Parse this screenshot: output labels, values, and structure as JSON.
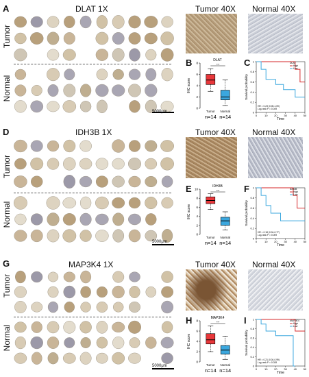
{
  "panels": {
    "A": {
      "letter": "A",
      "title": "DLAT 1X",
      "tumor": "Tumor",
      "normal": "Normal",
      "scale": "5000μm"
    },
    "tumor40_1": "Tumor 40X",
    "normal40_1": "Normal 40X",
    "B": {
      "letter": "B",
      "gene": "DLAT",
      "ylabel": "IHC score",
      "sig": "***",
      "xt": "Tumor",
      "xn": "Normal",
      "nt": "n=14",
      "nn": "n=14"
    },
    "C": {
      "letter": "C",
      "ylabel": "Survival probability",
      "xlabel": "Time",
      "hr": "HR = 0.23 (0.05-1.09)",
      "lr": "Log-rank P = 0.049",
      "legend_title": "DLAT",
      "high": "High",
      "low": "Low"
    },
    "D": {
      "letter": "D",
      "title": "IDH3B 1X",
      "tumor": "Tumor",
      "normal": "Normal",
      "scale": "5000μm"
    },
    "tumor40_2": "Tumor 40X",
    "normal40_2": "Normal 40X",
    "E": {
      "letter": "E",
      "gene": "IDH3B",
      "ylabel": "IHC score",
      "sig": "***",
      "xt": "Tumor",
      "xn": "Normal",
      "nt": "n=14",
      "nn": "n=14"
    },
    "F": {
      "letter": "F",
      "ylabel": "Survival probability",
      "xlabel": "Time",
      "hr": "HR = 0.18 (0.04-0.77)",
      "lr": "Log-rank P = 0.009",
      "legend_title": "IDH3B",
      "high": "High",
      "low": "Low"
    },
    "G": {
      "letter": "G",
      "title": "MAP3K4 1X",
      "tumor": "Tumor",
      "normal": "Normal",
      "scale": "5000μm"
    },
    "tumor40_3": "Tumor 40X",
    "normal40_3": "Normal 40X",
    "H": {
      "letter": "H",
      "gene": "MAP3K4",
      "ylabel": "IHC score",
      "sig": "***",
      "xt": "Tumor",
      "xn": "Normal",
      "nt": "n=14",
      "nn": "n=14"
    },
    "I": {
      "letter": "I",
      "ylabel": "Survival probability",
      "xlabel": "Time",
      "hr": "HR = 0.21 (0.04-0.99)",
      "lr": "Log-rank P = 0.028",
      "legend_title": "MAP3K4",
      "high": "High",
      "low": "Low"
    }
  },
  "colors": {
    "tumor": "#e8373a",
    "normal": "#3ba7de",
    "high": "#d62728",
    "low": "#3ba7de"
  },
  "chart_data": [
    {
      "type": "box",
      "panel": "B",
      "categories": [
        "Tumor",
        "Normal"
      ],
      "ylim": [
        0,
        8
      ],
      "yticks": [
        0,
        2,
        4,
        6,
        8
      ],
      "boxes": [
        {
          "min": 3,
          "q1": 4.2,
          "median": 5,
          "q3": 6,
          "max": 7
        },
        {
          "min": 0.5,
          "q1": 1.5,
          "median": 2,
          "q3": 3.2,
          "max": 5
        }
      ]
    },
    {
      "type": "line",
      "panel": "C",
      "xlim": [
        0,
        50
      ],
      "ylim": [
        0,
        1
      ],
      "xticks": [
        0,
        10,
        20,
        30,
        40,
        50
      ],
      "yticks": [
        0,
        0.2,
        0.4,
        0.6,
        0.8,
        1
      ],
      "series": [
        {
          "name": "High",
          "steps": [
            [
              0,
              1
            ],
            [
              40,
              1
            ],
            [
              40,
              0.85
            ],
            [
              45,
              0.85
            ],
            [
              45,
              0.6
            ],
            [
              50,
              0.6
            ]
          ]
        },
        {
          "name": "Low",
          "steps": [
            [
              0,
              1
            ],
            [
              5,
              1
            ],
            [
              5,
              0.85
            ],
            [
              10,
              0.85
            ],
            [
              10,
              0.65
            ],
            [
              20,
              0.65
            ],
            [
              20,
              0.55
            ],
            [
              28,
              0.55
            ],
            [
              28,
              0.45
            ],
            [
              40,
              0.45
            ],
            [
              40,
              0.3
            ],
            [
              50,
              0.3
            ]
          ]
        }
      ]
    },
    {
      "type": "box",
      "panel": "E",
      "categories": [
        "Tumor",
        "Normal"
      ],
      "ylim": [
        0,
        10
      ],
      "yticks": [
        0,
        2,
        4,
        6,
        8,
        10
      ],
      "boxes": [
        {
          "min": 5.5,
          "q1": 6.8,
          "median": 7.5,
          "q3": 8.3,
          "max": 9
        },
        {
          "min": 1,
          "q1": 2,
          "median": 3,
          "q3": 3.8,
          "max": 5
        }
      ]
    },
    {
      "type": "line",
      "panel": "F",
      "xlim": [
        0,
        50
      ],
      "ylim": [
        0,
        1
      ],
      "xticks": [
        0,
        10,
        20,
        30,
        40,
        50
      ],
      "yticks": [
        0,
        0.2,
        0.4,
        0.6,
        0.8,
        1
      ],
      "series": [
        {
          "name": "High",
          "steps": [
            [
              0,
              1
            ],
            [
              38,
              1
            ],
            [
              38,
              0.85
            ],
            [
              42,
              0.85
            ],
            [
              42,
              0.6
            ],
            [
              50,
              0.6
            ]
          ]
        },
        {
          "name": "Low",
          "steps": [
            [
              0,
              1
            ],
            [
              5,
              1
            ],
            [
              5,
              0.85
            ],
            [
              10,
              0.85
            ],
            [
              10,
              0.65
            ],
            [
              15,
              0.65
            ],
            [
              15,
              0.5
            ],
            [
              25,
              0.5
            ],
            [
              25,
              0.35
            ],
            [
              50,
              0.35
            ]
          ]
        }
      ]
    },
    {
      "type": "box",
      "panel": "H",
      "categories": [
        "Tumor",
        "Normal"
      ],
      "ylim": [
        0,
        8
      ],
      "yticks": [
        0,
        2,
        4,
        6,
        8
      ],
      "boxes": [
        {
          "min": 2,
          "q1": 3.5,
          "median": 4.3,
          "q3": 5.5,
          "max": 7
        },
        {
          "min": 0.5,
          "q1": 1.5,
          "median": 2.3,
          "q3": 3.2,
          "max": 5
        }
      ]
    },
    {
      "type": "line",
      "panel": "I",
      "xlim": [
        0,
        50
      ],
      "ylim": [
        0,
        1
      ],
      "xticks": [
        0,
        10,
        20,
        30,
        40,
        50
      ],
      "yticks": [
        0,
        0.2,
        0.4,
        0.6,
        0.8,
        1
      ],
      "series": [
        {
          "name": "High",
          "steps": [
            [
              0,
              1
            ],
            [
              40,
              1
            ],
            [
              40,
              0.75
            ],
            [
              50,
              0.75
            ]
          ]
        },
        {
          "name": "Low",
          "steps": [
            [
              0,
              1
            ],
            [
              5,
              1
            ],
            [
              5,
              0.9
            ],
            [
              10,
              0.9
            ],
            [
              10,
              0.75
            ],
            [
              20,
              0.75
            ],
            [
              20,
              0.65
            ],
            [
              38,
              0.65
            ],
            [
              38,
              0
            ],
            [
              40,
              0
            ]
          ]
        }
      ]
    }
  ]
}
